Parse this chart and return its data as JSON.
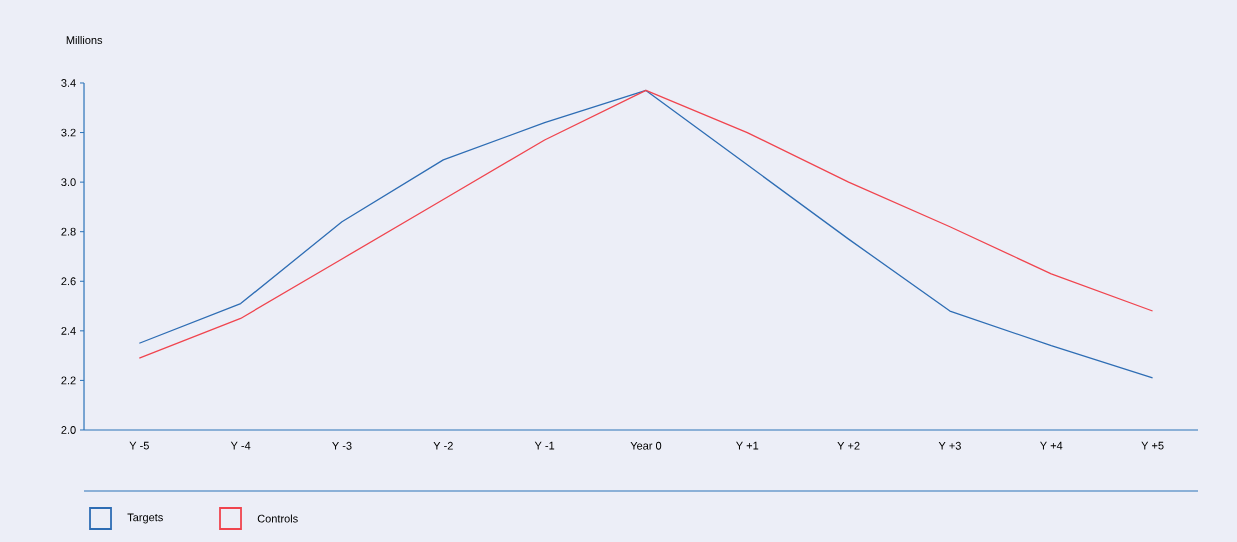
{
  "chart_data": {
    "type": "line",
    "ylabel": "Millions",
    "categories": [
      "Y -5",
      "Y -4",
      "Y -3",
      "Y -2",
      "Y -1",
      "Year 0",
      "Y +1",
      "Y +2",
      "Y +3",
      "Y +4",
      "Y +5"
    ],
    "series": [
      {
        "name": "Targets",
        "color": "#2e6db4",
        "values": [
          2.35,
          2.51,
          2.84,
          3.09,
          3.24,
          3.37,
          3.07,
          2.77,
          2.48,
          2.34,
          2.21
        ]
      },
      {
        "name": "Controls",
        "color": "#f0444e",
        "values": [
          2.29,
          2.45,
          2.69,
          2.93,
          3.17,
          3.37,
          3.2,
          3.0,
          2.82,
          2.63,
          2.48
        ]
      }
    ],
    "ylim": [
      2.0,
      3.4
    ],
    "yticks": [
      {
        "value": 2.0,
        "label": "2.0"
      },
      2.2,
      2.4,
      2.6,
      2.8,
      {
        "value": 3.0,
        "label": "3.0"
      },
      3.2,
      3.4
    ],
    "legend": "bottom left",
    "line_style": "solid"
  }
}
